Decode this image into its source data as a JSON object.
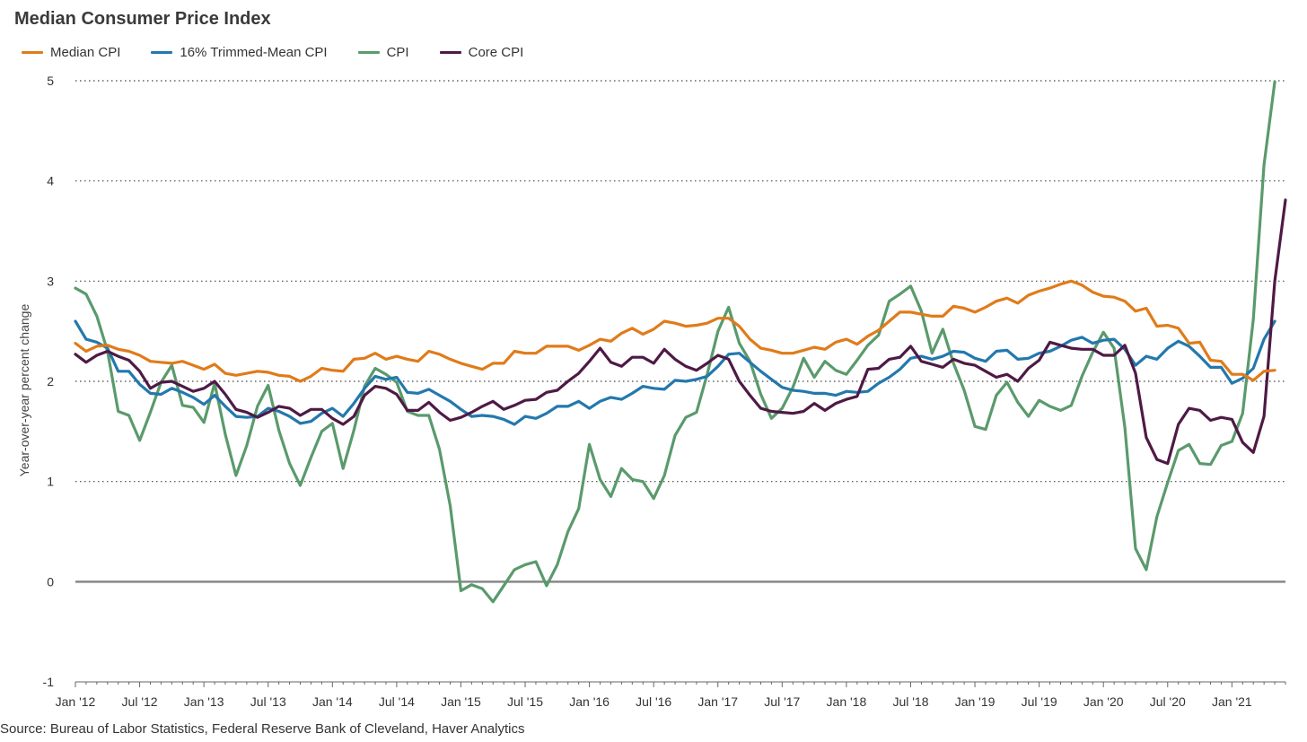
{
  "chart_data": {
    "type": "line",
    "title": "Median Consumer Price Index",
    "ylabel": "Year-over-year percent change",
    "xlabel": "",
    "ylim": [
      -1,
      5
    ],
    "yticks": [
      -1,
      0,
      1,
      2,
      3,
      4,
      5
    ],
    "grid": "horizontal dotted",
    "legend_position": "top-left",
    "x_start": "2012-01",
    "x_tick_labels": [
      "Jan '12",
      "Jul '12",
      "Jan '13",
      "Jul '13",
      "Jan '14",
      "Jul '14",
      "Jan '15",
      "Jul '15",
      "Jan '16",
      "Jul '16",
      "Jan '17",
      "Jul '17",
      "Jan '18",
      "Jul '18",
      "Jan '19",
      "Jul '19",
      "Jan '20",
      "Jul '20",
      "Jan '21"
    ],
    "x_tick_months": [
      "2012-01",
      "2012-07",
      "2013-01",
      "2013-07",
      "2014-01",
      "2014-07",
      "2015-01",
      "2015-07",
      "2016-01",
      "2016-07",
      "2017-01",
      "2017-07",
      "2018-01",
      "2018-07",
      "2019-01",
      "2019-07",
      "2020-01",
      "2020-07",
      "2021-01"
    ],
    "series": [
      {
        "name": "Median CPI",
        "color": "#e07b1a",
        "values": [
          2.38,
          2.3,
          2.35,
          2.36,
          2.32,
          2.3,
          2.26,
          2.2,
          2.19,
          2.18,
          2.2,
          2.16,
          2.12,
          2.17,
          2.08,
          2.06,
          2.08,
          2.1,
          2.09,
          2.06,
          2.05,
          2.0,
          2.05,
          2.13,
          2.11,
          2.1,
          2.22,
          2.23,
          2.28,
          2.22,
          2.25,
          2.22,
          2.2,
          2.3,
          2.27,
          2.22,
          2.18,
          2.15,
          2.12,
          2.18,
          2.18,
          2.3,
          2.28,
          2.28,
          2.35,
          2.35,
          2.35,
          2.31,
          2.36,
          2.42,
          2.4,
          2.48,
          2.53,
          2.47,
          2.52,
          2.6,
          2.58,
          2.55,
          2.56,
          2.58,
          2.63,
          2.63,
          2.55,
          2.42,
          2.33,
          2.31,
          2.28,
          2.28,
          2.31,
          2.34,
          2.32,
          2.39,
          2.42,
          2.37,
          2.45,
          2.51,
          2.6,
          2.69,
          2.69,
          2.67,
          2.65,
          2.65,
          2.75,
          2.73,
          2.69,
          2.74,
          2.8,
          2.83,
          2.78,
          2.86,
          2.9,
          2.93,
          2.97,
          3.0,
          2.96,
          2.89,
          2.85,
          2.84,
          2.8,
          2.7,
          2.73,
          2.55,
          2.56,
          2.53,
          2.38,
          2.39,
          2.21,
          2.2,
          2.07,
          2.07,
          2.01,
          2.1,
          2.11
        ]
      },
      {
        "name": "16% Trimmed-Mean CPI",
        "color": "#2378ae",
        "values": [
          2.6,
          2.42,
          2.39,
          2.33,
          2.1,
          2.1,
          1.97,
          1.88,
          1.87,
          1.93,
          1.89,
          1.84,
          1.77,
          1.86,
          1.75,
          1.65,
          1.64,
          1.65,
          1.73,
          1.7,
          1.65,
          1.58,
          1.6,
          1.68,
          1.73,
          1.65,
          1.78,
          1.93,
          2.05,
          2.02,
          2.04,
          1.89,
          1.88,
          1.92,
          1.86,
          1.8,
          1.72,
          1.65,
          1.66,
          1.65,
          1.62,
          1.57,
          1.65,
          1.63,
          1.68,
          1.75,
          1.75,
          1.8,
          1.73,
          1.8,
          1.84,
          1.82,
          1.88,
          1.95,
          1.93,
          1.92,
          2.01,
          2.0,
          2.02,
          2.05,
          2.15,
          2.27,
          2.28,
          2.19,
          2.1,
          2.02,
          1.94,
          1.91,
          1.9,
          1.88,
          1.88,
          1.86,
          1.9,
          1.89,
          1.9,
          1.98,
          2.04,
          2.12,
          2.23,
          2.25,
          2.22,
          2.25,
          2.3,
          2.29,
          2.23,
          2.2,
          2.3,
          2.31,
          2.22,
          2.23,
          2.28,
          2.3,
          2.35,
          2.41,
          2.44,
          2.38,
          2.41,
          2.42,
          2.32,
          2.16,
          2.25,
          2.22,
          2.33,
          2.4,
          2.35,
          2.25,
          2.14,
          2.14,
          1.98,
          2.03,
          2.13,
          2.42,
          2.6
        ]
      },
      {
        "name": "CPI",
        "color": "#5a9a6c",
        "values": [
          2.93,
          2.87,
          2.65,
          2.3,
          1.7,
          1.66,
          1.41,
          1.69,
          1.99,
          2.16,
          1.76,
          1.74,
          1.59,
          1.98,
          1.47,
          1.06,
          1.36,
          1.75,
          1.96,
          1.51,
          1.18,
          0.96,
          1.24,
          1.5,
          1.58,
          1.13,
          1.51,
          1.95,
          2.13,
          2.07,
          1.99,
          1.7,
          1.66,
          1.66,
          1.32,
          0.76,
          -0.09,
          -0.03,
          -0.07,
          -0.2,
          -0.04,
          0.12,
          0.17,
          0.2,
          -0.04,
          0.17,
          0.5,
          0.73,
          1.37,
          1.02,
          0.85,
          1.13,
          1.02,
          1.0,
          0.83,
          1.06,
          1.46,
          1.64,
          1.69,
          2.07,
          2.5,
          2.74,
          2.38,
          2.2,
          1.87,
          1.63,
          1.73,
          1.94,
          2.23,
          2.04,
          2.2,
          2.11,
          2.07,
          2.21,
          2.36,
          2.46,
          2.8,
          2.87,
          2.95,
          2.7,
          2.28,
          2.52,
          2.18,
          1.91,
          1.55,
          1.52,
          1.86,
          1.99,
          1.79,
          1.65,
          1.81,
          1.75,
          1.71,
          1.76,
          2.05,
          2.29,
          2.49,
          2.33,
          1.54,
          0.33,
          0.12,
          0.65,
          0.99,
          1.31,
          1.37,
          1.18,
          1.17,
          1.36,
          1.4,
          1.68,
          2.62,
          4.16,
          4.99
        ]
      },
      {
        "name": "Core CPI",
        "color": "#4e1a45",
        "values": [
          2.27,
          2.19,
          2.26,
          2.3,
          2.25,
          2.21,
          2.1,
          1.93,
          1.99,
          2.0,
          1.95,
          1.9,
          1.93,
          2.0,
          1.87,
          1.72,
          1.69,
          1.64,
          1.69,
          1.75,
          1.73,
          1.66,
          1.72,
          1.72,
          1.63,
          1.57,
          1.65,
          1.86,
          1.95,
          1.93,
          1.87,
          1.71,
          1.71,
          1.79,
          1.69,
          1.61,
          1.64,
          1.69,
          1.75,
          1.8,
          1.72,
          1.76,
          1.81,
          1.82,
          1.89,
          1.91,
          2.0,
          2.08,
          2.2,
          2.33,
          2.19,
          2.15,
          2.24,
          2.24,
          2.18,
          2.32,
          2.22,
          2.15,
          2.11,
          2.18,
          2.26,
          2.22,
          2.0,
          1.86,
          1.73,
          1.7,
          1.69,
          1.68,
          1.7,
          1.78,
          1.71,
          1.78,
          1.82,
          1.85,
          2.12,
          2.13,
          2.22,
          2.24,
          2.35,
          2.2,
          2.17,
          2.14,
          2.22,
          2.18,
          2.16,
          2.1,
          2.04,
          2.07,
          2.0,
          2.13,
          2.21,
          2.39,
          2.36,
          2.33,
          2.32,
          2.32,
          2.26,
          2.26,
          2.36,
          2.08,
          1.44,
          1.22,
          1.18,
          1.57,
          1.73,
          1.71,
          1.61,
          1.64,
          1.62,
          1.39,
          1.29,
          1.65,
          3.0,
          3.81
        ]
      }
    ]
  },
  "footer": {
    "source": "Source: Bureau of Labor Statistics, Federal Reserve Bank of Cleveland, Haver Analytics"
  }
}
